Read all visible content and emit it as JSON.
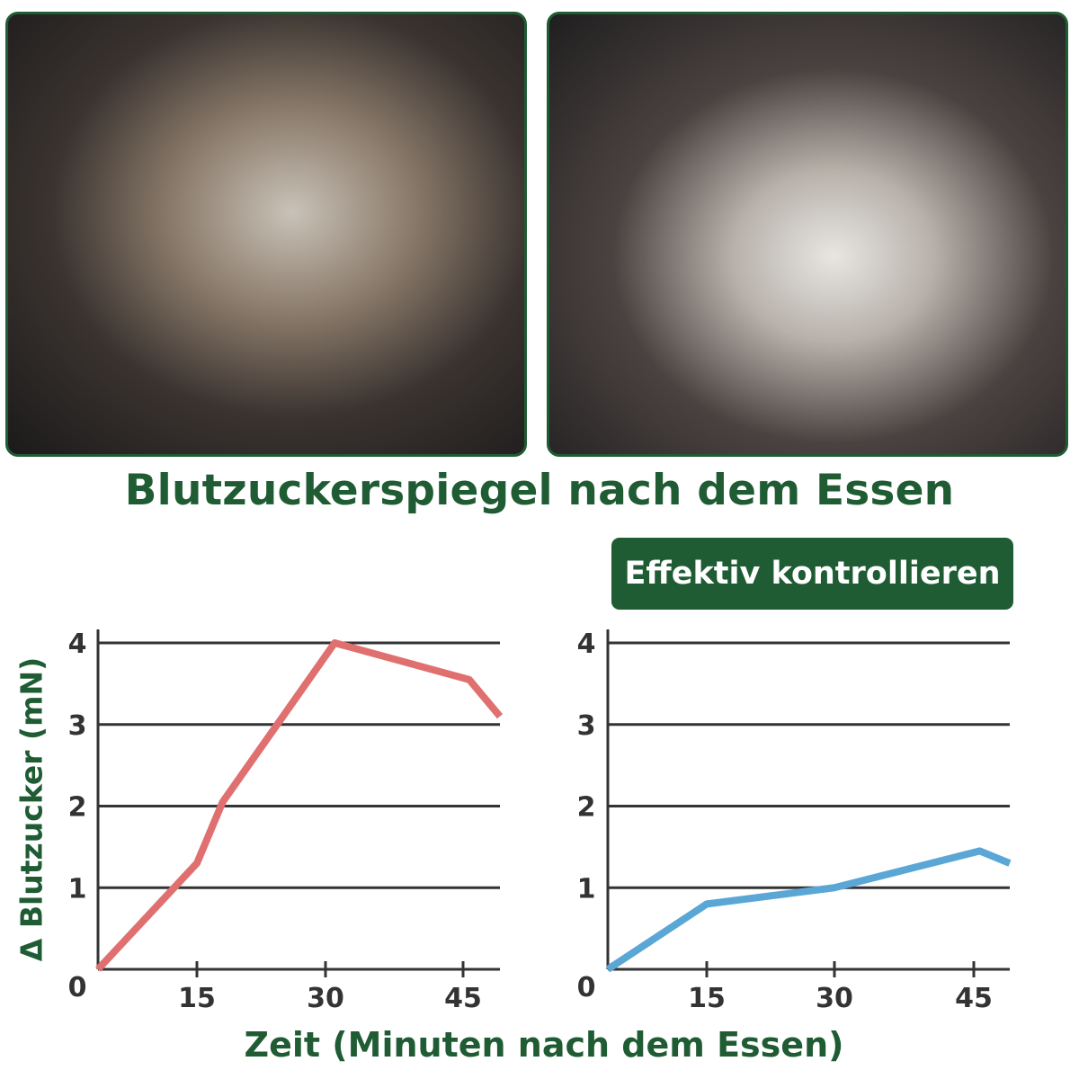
{
  "title": "Blutzuckerspiegel nach dem Essen",
  "badge": "Effektiv kontrollieren",
  "colors": {
    "brand_green": "#1f5c33",
    "before_line": "#e07070",
    "after_line": "#5aa7d6",
    "grid": "#333333"
  },
  "chart_data": [
    {
      "type": "line",
      "xlabel": "Zeit (Minuten nach dem Essen)",
      "ylabel": "Δ Blutzucker (mN)",
      "x_ticks": [
        "15",
        "30",
        "45"
      ],
      "y_ticks": [
        "0",
        "1",
        "2",
        "3",
        "4"
      ],
      "ylim": [
        0,
        4
      ],
      "xlim": [
        0,
        48
      ],
      "grid": true,
      "series": [
        {
          "x": [
            0,
            15,
            18,
            31,
            45.5,
            48
          ],
          "y": [
            0,
            1.3,
            2.05,
            4.0,
            3.55,
            3.1
          ],
          "color": "#e07070"
        }
      ]
    },
    {
      "type": "line",
      "xlabel": "Zeit (Minuten nach dem Essen)",
      "ylabel": "",
      "x_ticks": [
        "15",
        "30",
        "45"
      ],
      "y_ticks": [
        "0",
        "1",
        "2",
        "3",
        "4"
      ],
      "ylim": [
        0,
        4
      ],
      "xlim": [
        0,
        48
      ],
      "grid": true,
      "series": [
        {
          "x": [
            0,
            15,
            30,
            45.5,
            48
          ],
          "y": [
            0,
            0.8,
            1.0,
            1.45,
            1.3
          ],
          "color": "#5aa7d6"
        }
      ]
    }
  ]
}
